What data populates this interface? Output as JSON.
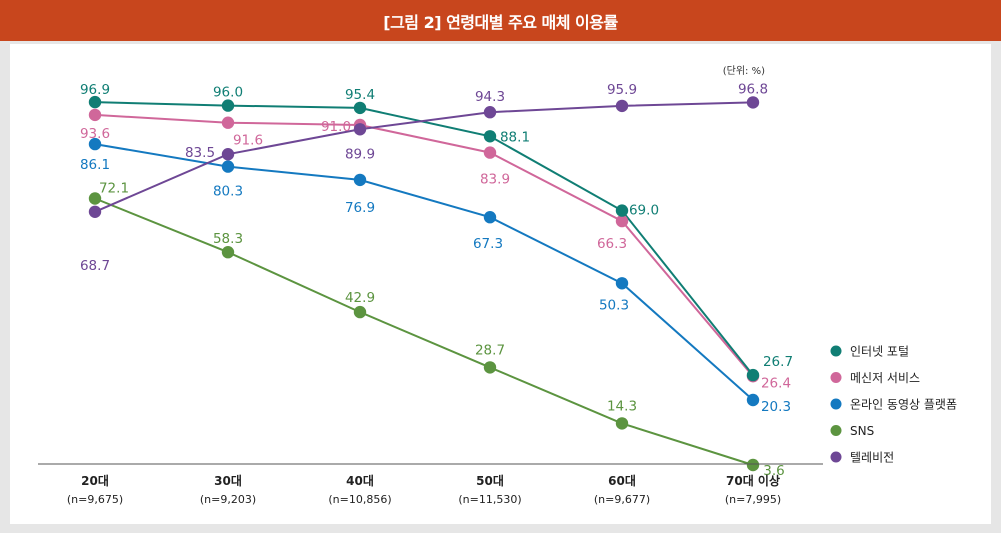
{
  "header": {
    "title": "[그림 2] 연령대별 주요 매체 이용률"
  },
  "chart_data": {
    "type": "line",
    "unit_note": "(단위: %)",
    "categories": [
      "20대",
      "30대",
      "40대",
      "50대",
      "60대",
      "70대 이상"
    ],
    "category_samples": [
      "(n=9,675)",
      "(n=9,203)",
      "(n=10,856)",
      "(n=11,530)",
      "(n=9,677)",
      "(n=7,995)"
    ],
    "ylim": [
      0,
      100
    ],
    "legend_position": "right",
    "series": [
      {
        "name": "인터넷 포털",
        "color": "#107e74",
        "values": [
          96.9,
          96.0,
          95.4,
          88.1,
          69.0,
          26.7
        ]
      },
      {
        "name": "메신저 서비스",
        "color": "#d0679a",
        "values": [
          93.6,
          91.6,
          91.0,
          83.9,
          66.3,
          26.4
        ]
      },
      {
        "name": "온라인 동영상 플랫폼",
        "color": "#1479c0",
        "values": [
          86.1,
          80.3,
          76.9,
          67.3,
          50.3,
          20.3
        ]
      },
      {
        "name": "SNS",
        "color": "#5c9440",
        "values": [
          72.1,
          58.3,
          42.9,
          28.7,
          14.3,
          3.6
        ]
      },
      {
        "name": "텔레비전",
        "color": "#6e4795",
        "values": [
          68.7,
          83.5,
          89.9,
          94.3,
          95.9,
          96.8
        ]
      }
    ],
    "data_labels": [
      [
        "96.9",
        "96.0",
        "95.4",
        "88.1",
        "69.0",
        "26.7"
      ],
      [
        "93.6",
        "91.6",
        "91.0",
        "83.9",
        "66.3",
        "26.4"
      ],
      [
        "86.1",
        "80.3",
        "76.9",
        "67.3",
        "50.3",
        "20.3"
      ],
      [
        "72.1",
        "58.3",
        "42.9",
        "28.7",
        "14.3",
        "3.6"
      ],
      [
        "68.7",
        "83.5",
        "89.9",
        "94.3",
        "95.9",
        "96.8"
      ]
    ]
  }
}
